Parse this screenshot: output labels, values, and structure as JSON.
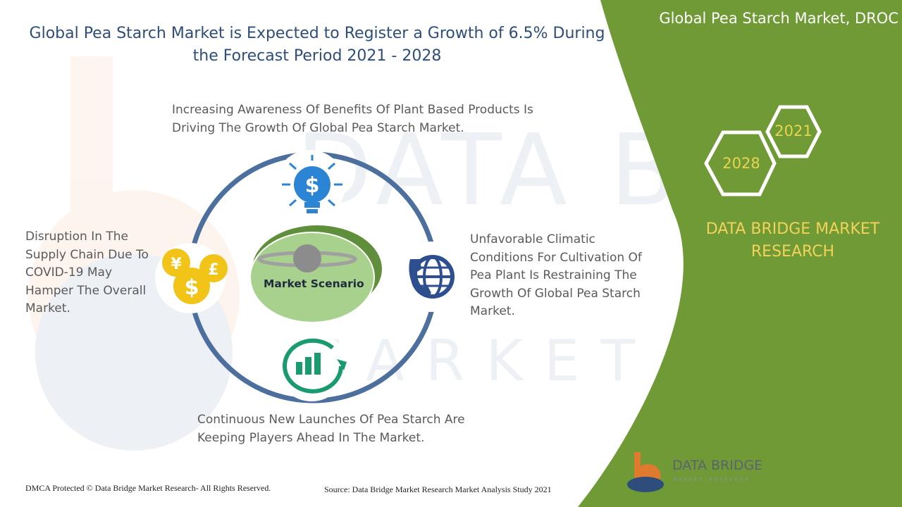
{
  "title": "Global Pea Starch Market is Expected to Register a Growth of 6.5% During the Forecast Period 2021 - 2028",
  "side_panel": {
    "heading": "Global Pea Starch Market, DROC",
    "hex_year_start": "2021",
    "hex_year_end": "2028",
    "brand_line1": "DATA BRIDGE MARKET",
    "brand_line2": "RESEARCH"
  },
  "diagram": {
    "center_label": "Market Scenario",
    "drivers_text": "Increasing Awareness Of Benefits Of Plant Based Products Is Driving The Growth Of Global Pea Starch Market.",
    "restraints_text": "Unfavorable Climatic Conditions For Cultivation Of Pea Plant Is Restraining The Growth Of Global Pea Starch Market.",
    "opportunities_text": "Continuous New Launches Of Pea Starch Are Keeping Players Ahead In The Market.",
    "challenges_text": "Disruption In The Supply Chain Due To COVID-19 May Hamper The Overall Market."
  },
  "footer": {
    "copyright": "DMCA Protected © Data Bridge Market Research- All Rights Reserved.",
    "source": "Source: Data Bridge Market Research Market Analysis Study 2021"
  },
  "logo": {
    "name": "DATA BRIDGE",
    "sub": "MARKET RESEARCH"
  },
  "colors": {
    "panel_green": "#6f9a35",
    "title_blue": "#2e4d7b",
    "ring_blue": "#4c6f9e",
    "accent_yellow": "#f2d35a",
    "center_green": "#a9d18e"
  },
  "icons": [
    "lightbulb-dollar-icon",
    "globe-phone-icon",
    "growth-chart-icon",
    "currency-coins-icon",
    "planet-icon"
  ]
}
